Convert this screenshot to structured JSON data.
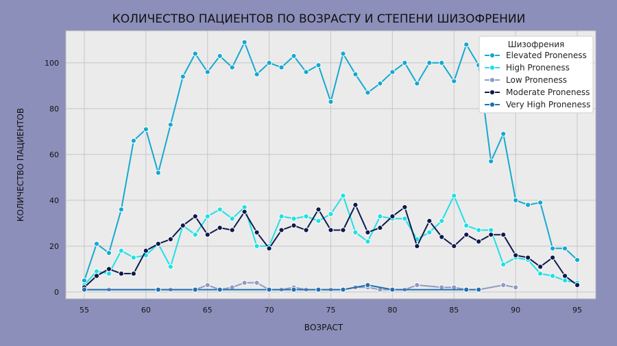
{
  "chart_data": {
    "type": "line",
    "title": "КОЛИЧЕСТВО ПАЦИЕНТОВ ПО ВОЗРАСТУ И СТЕПЕНИ ШИЗОФРЕНИИ",
    "xlabel": "ВОЗРАСТ",
    "ylabel": "КОЛИЧЕСТВО ПАЦИЕНТОВ",
    "xlim": [
      53.5,
      96.5
    ],
    "ylim": [
      -3,
      114
    ],
    "xticks": [
      55,
      60,
      65,
      70,
      75,
      80,
      85,
      90,
      95
    ],
    "yticks": [
      0,
      20,
      40,
      60,
      80,
      100
    ],
    "grid": true,
    "legend": {
      "title": "Шизофрения",
      "position": "top-right"
    },
    "series": [
      {
        "name": "Elevated Proneness",
        "color": "#14a9cf",
        "x": [
          55,
          56,
          57,
          58,
          59,
          60,
          61,
          62,
          63,
          64,
          65,
          66,
          67,
          68,
          69,
          70,
          71,
          72,
          73,
          74,
          75,
          76,
          77,
          78,
          79,
          80,
          81,
          82,
          83,
          84,
          85,
          86,
          87,
          88,
          89,
          90,
          91,
          92,
          93,
          94,
          95
        ],
        "y": [
          5,
          21,
          17,
          36,
          66,
          71,
          52,
          73,
          94,
          104,
          96,
          103,
          98,
          109,
          95,
          100,
          98,
          103,
          96,
          99,
          83,
          104,
          95,
          87,
          91,
          96,
          100,
          91,
          100,
          100,
          92,
          108,
          99,
          57,
          69,
          40,
          38,
          39,
          19,
          19,
          14
        ]
      },
      {
        "name": "High Proneness",
        "color": "#1ee0e4",
        "x": [
          55,
          56,
          57,
          58,
          59,
          60,
          61,
          62,
          63,
          64,
          65,
          66,
          67,
          68,
          69,
          70,
          71,
          72,
          73,
          74,
          75,
          76,
          77,
          78,
          79,
          80,
          81,
          82,
          83,
          84,
          85,
          86,
          87,
          88,
          89,
          90,
          91,
          92,
          93,
          94,
          95
        ],
        "y": [
          3,
          9,
          8,
          18,
          15,
          16,
          21,
          11,
          29,
          25,
          33,
          36,
          32,
          37,
          20,
          20,
          33,
          32,
          33,
          31,
          34,
          42,
          26,
          22,
          33,
          32,
          32,
          23,
          26,
          31,
          42,
          29,
          27,
          27,
          12,
          15,
          14,
          8,
          7,
          5,
          4
        ]
      },
      {
        "name": "Low Proneness",
        "color": "#8f9bc4",
        "x": [
          55,
          57,
          61,
          62,
          64,
          65,
          66,
          67,
          68,
          69,
          70,
          71,
          72,
          73,
          74,
          75,
          76,
          77,
          78,
          79,
          80,
          81,
          82,
          84,
          85,
          86,
          87,
          89,
          90
        ],
        "y": [
          1,
          1,
          1,
          1,
          1,
          3,
          1,
          2,
          4,
          4,
          1,
          1,
          2,
          1,
          1,
          1,
          1,
          2,
          2,
          1,
          1,
          1,
          3,
          2,
          2,
          1,
          1,
          3,
          2
        ]
      },
      {
        "name": "Moderate Proneness",
        "color": "#0e1a4d",
        "x": [
          55,
          56,
          57,
          58,
          59,
          60,
          61,
          62,
          63,
          64,
          65,
          66,
          67,
          68,
          69,
          70,
          71,
          72,
          73,
          74,
          75,
          76,
          77,
          78,
          79,
          80,
          81,
          82,
          83,
          84,
          85,
          86,
          87,
          88,
          89,
          90,
          91,
          92,
          93,
          94,
          95
        ],
        "y": [
          2,
          7,
          10,
          8,
          8,
          18,
          21,
          23,
          29,
          33,
          25,
          28,
          27,
          35,
          26,
          19,
          27,
          29,
          27,
          36,
          27,
          27,
          38,
          26,
          28,
          33,
          37,
          20,
          31,
          24,
          20,
          25,
          22,
          25,
          25,
          16,
          15,
          11,
          15,
          7,
          3
        ]
      },
      {
        "name": "Very High Proneness",
        "color": "#1f6fb4",
        "x": [
          55,
          61,
          64,
          66,
          70,
          72,
          74,
          76,
          78,
          80,
          86,
          87
        ],
        "y": [
          1,
          1,
          1,
          1,
          1,
          1,
          1,
          1,
          3,
          1,
          1,
          1
        ]
      }
    ]
  }
}
